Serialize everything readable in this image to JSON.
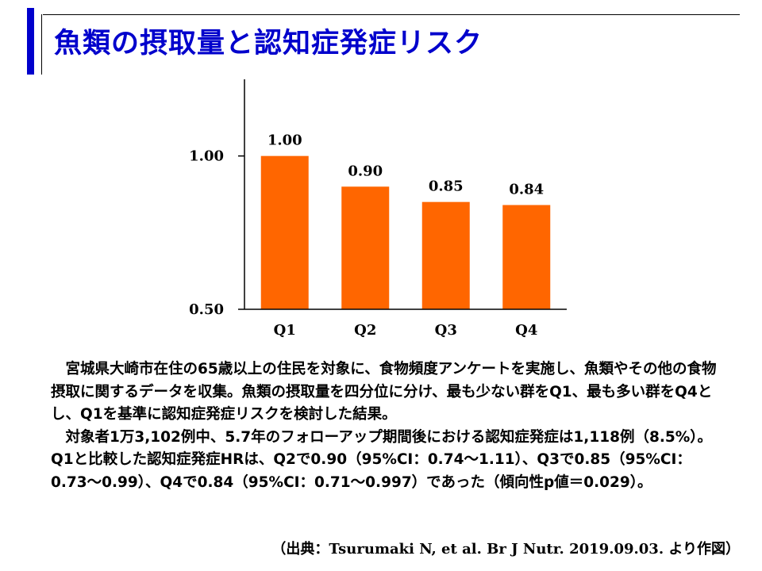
{
  "header": {
    "title": "魚類の摂取量と認知症発症リスク"
  },
  "colors": {
    "title": "#0000cc",
    "bar": "#ff6600"
  },
  "chart_data": {
    "type": "bar",
    "categories": [
      "Q1",
      "Q2",
      "Q3",
      "Q4"
    ],
    "values": [
      1.0,
      0.9,
      0.85,
      0.84
    ],
    "value_labels": [
      "1.00",
      "0.90",
      "0.85",
      "0.84"
    ],
    "title": "",
    "xlabel": "",
    "ylabel": "",
    "ylim": [
      0.5,
      1.25
    ],
    "yticks": [
      0.5,
      1.0
    ],
    "ytick_labels": [
      "0.50",
      "1.00"
    ],
    "grid": false,
    "legend": "none"
  },
  "description": {
    "paragraph1": "宮城県大崎市在住の65歳以上の住民を対象に、食物頻度アンケートを実施し、魚類やその他の食物摂取に関するデータを収集。魚類の摂取量を四分位に分け、最も少ない群をQ1、最も多い群をQ4とし、Q1を基準に認知症発症リスクを検討した結果。",
    "paragraph2": "対象者1万3,102例中、5.7年のフォローアップ期間後における認知症発症は1,118例（8.5%）。Q1と比較した認知症発症HRは、Q2で0.90（95%CI：0.74～1.11）、Q3で0.85（95%CI：0.73～0.99）、Q4で0.84（95%CI：0.71～0.997）であった（傾向性p値＝0.029）。"
  },
  "source": "（出典：Tsurumaki N, et al. Br J Nutr. 2019.09.03.  より作図）"
}
